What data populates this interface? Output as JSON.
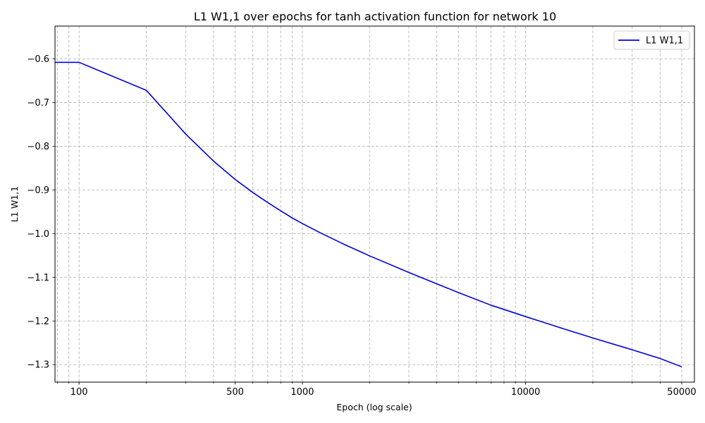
{
  "chart_data": {
    "type": "line",
    "title": "L1 W1,1 over epochs for tanh activation function for network 10",
    "xlabel": "Epoch (log scale)",
    "ylabel": "L1 W1,1",
    "x_scale": "log",
    "xlim": [
      78,
      57000
    ],
    "ylim": [
      -1.34,
      -0.525
    ],
    "x_ticks": [
      100,
      500,
      1000,
      10000,
      50000
    ],
    "x_tick_labels": [
      "100",
      "500",
      "1000",
      "10000",
      "50000"
    ],
    "y_ticks": [
      -0.6,
      -0.7,
      -0.8,
      -0.9,
      -1.0,
      -1.1,
      -1.2,
      -1.3
    ],
    "y_tick_labels": [
      "−0.6",
      "−0.7",
      "−0.8",
      "−0.9",
      "−1.0",
      "−1.1",
      "−1.2",
      "−1.3"
    ],
    "grid": true,
    "legend_position": "top-right",
    "series": [
      {
        "name": "L1 W1,1",
        "color": "#0000dd",
        "x": [
          78,
          100,
          200,
          300,
          400,
          500,
          600,
          700,
          800,
          900,
          1000,
          1200,
          1500,
          2000,
          3000,
          4000,
          5000,
          7000,
          10000,
          15000,
          20000,
          30000,
          40000,
          50000
        ],
        "y": [
          -0.608,
          -0.608,
          -0.672,
          -0.772,
          -0.834,
          -0.876,
          -0.906,
          -0.929,
          -0.948,
          -0.964,
          -0.977,
          -0.998,
          -1.022,
          -1.051,
          -1.089,
          -1.115,
          -1.135,
          -1.164,
          -1.19,
          -1.219,
          -1.239,
          -1.266,
          -1.286,
          -1.305
        ]
      }
    ]
  }
}
